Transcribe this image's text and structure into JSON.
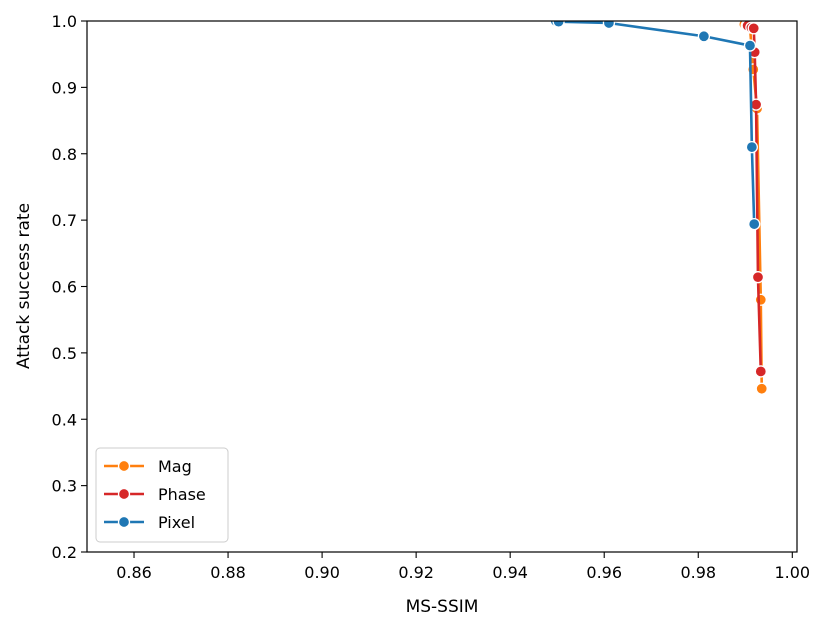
{
  "chart_data": {
    "type": "line",
    "xlabel": "MS-SSIM",
    "ylabel": "Attack success rate",
    "xlim": [
      0.85,
      1.001
    ],
    "ylim": [
      0.2,
      1.0
    ],
    "xticks": [
      0.86,
      0.88,
      0.9,
      0.92,
      0.94,
      0.96,
      0.98,
      1.0
    ],
    "xtick_labels": [
      "0.86",
      "0.88",
      "0.90",
      "0.92",
      "0.94",
      "0.96",
      "0.98",
      "1.00"
    ],
    "yticks": [
      0.2,
      0.3,
      0.4,
      0.5,
      0.6,
      0.7,
      0.8,
      0.9,
      1.0
    ],
    "ytick_labels": [
      "0.2",
      "0.3",
      "0.4",
      "0.5",
      "0.6",
      "0.7",
      "0.8",
      "0.9",
      "1.0"
    ],
    "legend_position": "lower-left",
    "grid": false,
    "series": [
      {
        "name": "Mag",
        "color": "#ff7f0e",
        "marker": "circle",
        "x": [
          0.9898,
          0.9903,
          0.991,
          0.9917,
          0.9925,
          0.9933,
          0.9935
        ],
        "y": [
          0.995,
          0.993,
          0.991,
          0.927,
          0.868,
          0.58,
          0.446
        ]
      },
      {
        "name": "Phase",
        "color": "#d62728",
        "marker": "circle",
        "x": [
          0.9905,
          0.9913,
          0.9918,
          0.992,
          0.9923,
          0.9927,
          0.9933
        ],
        "y": [
          0.993,
          0.99,
          0.989,
          0.953,
          0.874,
          0.614,
          0.472
        ]
      },
      {
        "name": "Pixel",
        "color": "#1f77b4",
        "marker": "circle",
        "x": [
          0.9497,
          0.9503,
          0.961,
          0.9812,
          0.991,
          0.9914,
          0.9919
        ],
        "y": [
          1.0,
          0.999,
          0.997,
          0.977,
          0.963,
          0.81,
          0.694
        ]
      }
    ]
  }
}
